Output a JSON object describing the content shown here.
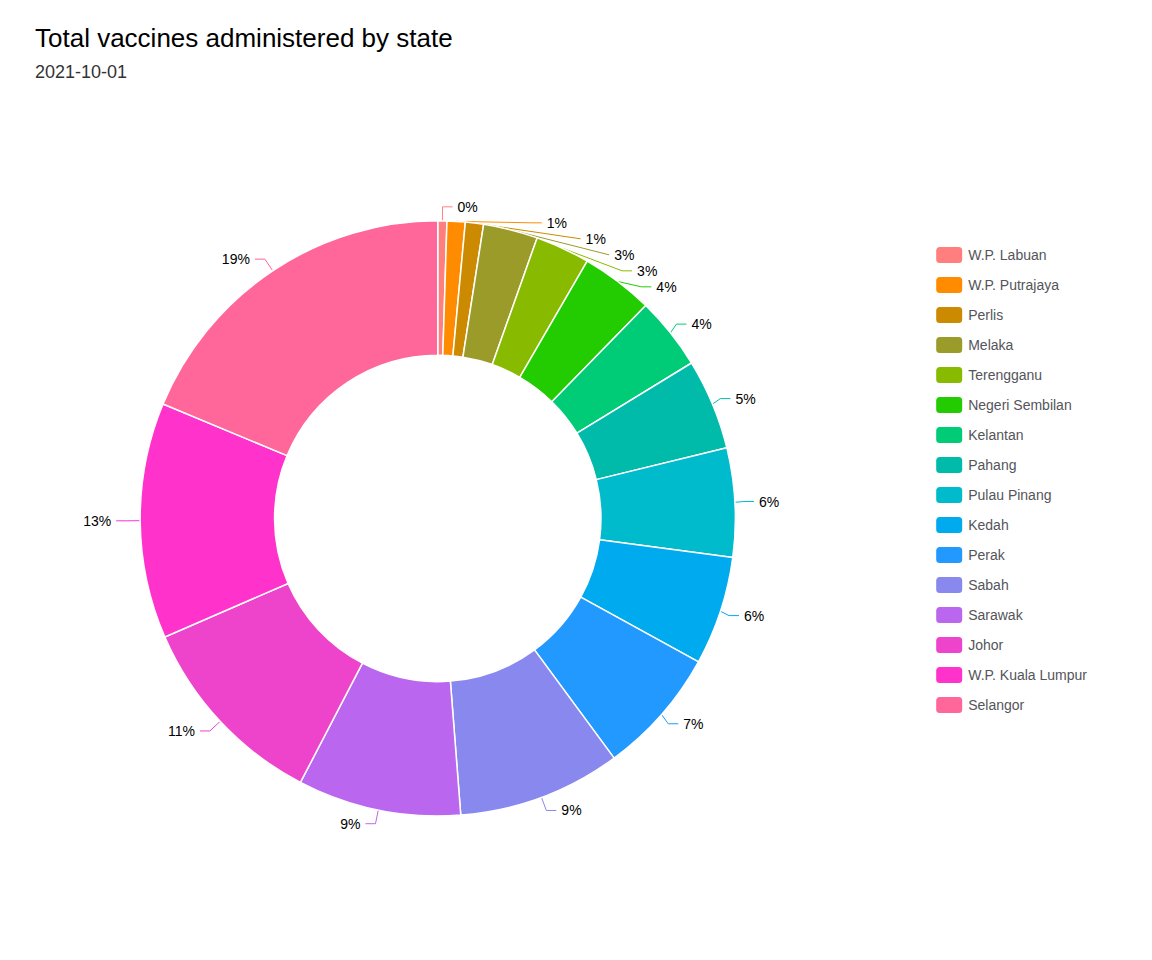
{
  "chart_data": {
    "type": "pie",
    "title": "Total vaccines administered by state",
    "subtitle": "2021-10-01",
    "categories": [
      "W.P. Labuan",
      "W.P. Putrajaya",
      "Perlis",
      "Melaka",
      "Terengganu",
      "Negeri Sembilan",
      "Kelantan",
      "Pahang",
      "Pulau Pinang",
      "Kedah",
      "Perak",
      "Sabah",
      "Sarawak",
      "Johor",
      "W.P. Kuala Lumpur",
      "Selangor"
    ],
    "values": [
      0.5,
      1.0,
      1.0,
      3.0,
      3.0,
      4.0,
      4.0,
      5.0,
      6.0,
      6.0,
      7.0,
      9.0,
      9.0,
      11.0,
      13.0,
      19.0
    ],
    "value_labels": [
      "0%",
      "1%",
      "1%",
      "3%",
      "3%",
      "4%",
      "4%",
      "5%",
      "6%",
      "6%",
      "7%",
      "9%",
      "9%",
      "11%",
      "13%",
      "19%"
    ],
    "colors": [
      "#FF7F7F",
      "#FF8C00",
      "#CC8A00",
      "#9B9B2A",
      "#88BB00",
      "#22CC00",
      "#00CC77",
      "#00BBAA",
      "#00BBCC",
      "#00AAEE",
      "#2299FF",
      "#8888EE",
      "#BB66EE",
      "#EE44CC",
      "#FF33CC",
      "#FF6699"
    ],
    "data_labels": true,
    "legend": "right"
  }
}
